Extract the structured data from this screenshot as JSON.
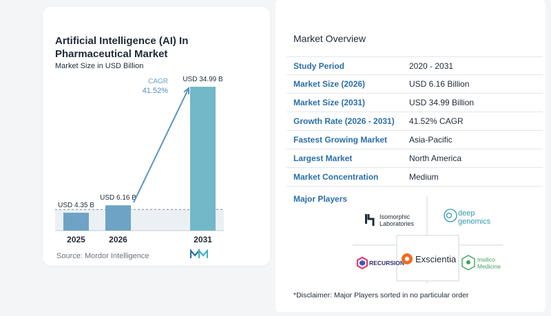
{
  "chart_data": {
    "type": "bar",
    "title": "Artificial Intelligence (AI) In Pharmaceutical Market",
    "subtitle": "Market Size in USD Billion",
    "categories": [
      "2025",
      "2026",
      "2031"
    ],
    "values": [
      4.35,
      6.16,
      34.99
    ],
    "data_labels": [
      "USD 4.35 B",
      "USD 6.16 B",
      "USD 34.99 B"
    ],
    "cagr_label": "CAGR",
    "cagr_value": "41.52%",
    "colors": {
      "bar": "#6ea3c5",
      "bar_last": "#72b8c8",
      "arrow": "#5b93c0",
      "band": "#dde6ee"
    }
  },
  "source": "Source:  Mordor Intelligence",
  "overview": {
    "title": "Market Overview",
    "rows": [
      {
        "label": "Study Period",
        "value": "2020 - 2031"
      },
      {
        "label": "Market Size (2026)",
        "value": "USD 6.16 Billion"
      },
      {
        "label": "Market Size (2031)",
        "value": "USD 34.99 Billion"
      },
      {
        "label": "Growth Rate (2026 - 2031)",
        "value": "41.52% CAGR"
      },
      {
        "label": "Fastest Growing Market",
        "value": "Asia-Pacific"
      },
      {
        "label": "Largest Market",
        "value": "North America"
      },
      {
        "label": "Market Concentration",
        "value": "Medium"
      }
    ]
  },
  "major_players": {
    "title": "Major Players",
    "players": [
      {
        "name": "Isomorphic Laboratories",
        "line1": "Isomorphic",
        "line2": "Laboratories",
        "icon": "isomorphic-logo-icon"
      },
      {
        "name": "Deep Genomics",
        "line1": "deep",
        "line2": "genomics",
        "icon": "deep-genomics-logo-icon"
      },
      {
        "name": "Recursion",
        "line1": "RECURSION",
        "icon": "recursion-logo-icon"
      },
      {
        "name": "Exscientia",
        "line1": "Exscientia",
        "icon": "exscientia-logo-icon"
      },
      {
        "name": "Insilico Medicine",
        "line1": "Insilico",
        "line2": "Medicine",
        "icon": "insilico-logo-icon"
      }
    ]
  },
  "disclaimer": "*Disclaimer: Major Players sorted in no particular order"
}
